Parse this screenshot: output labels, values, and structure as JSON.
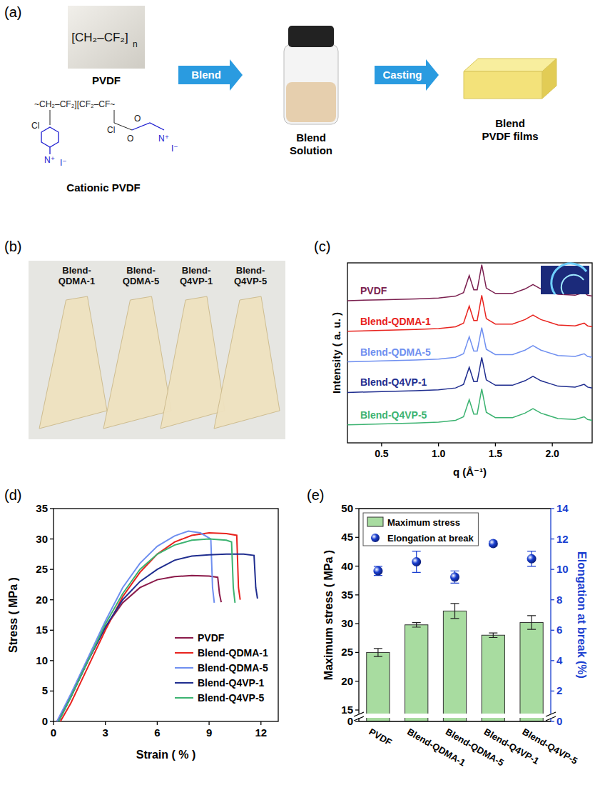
{
  "figure": {
    "panel_labels": [
      "(a)",
      "(b)",
      "(c)",
      "(d)",
      "(e)"
    ],
    "schematic": {
      "pvdf_label": "PVDF",
      "pvdf_formula": "[CH₂–CF₂]",
      "pvdf_subscript": "n",
      "cationic_label": "Cationic PVDF",
      "cationic_backbone": "~CH₂–CF₂][CF₂–CF~",
      "cationic_groups": [
        "Cl",
        "N⁺",
        "I⁻",
        "Cl",
        "O",
        "O",
        "N⁺",
        "I⁻"
      ],
      "steps": [
        "Blend",
        "Casting"
      ],
      "solution_label": "Blend Solution",
      "film_label": "Blend PVDF films"
    },
    "photo": {
      "labels": [
        "Blend-QDMA-1",
        "Blend-QDMA-5",
        "Blend-Q4VP-1",
        "Blend-Q4VP-5"
      ]
    }
  },
  "chart_data": [
    {
      "type": "line",
      "x_label": "q (Å⁻¹)",
      "y_label": "Intensity ( a. u. )",
      "x": [
        0.2,
        0.5,
        0.8,
        1.0,
        1.15,
        1.22,
        1.27,
        1.31,
        1.34,
        1.38,
        1.42,
        1.5,
        1.65,
        1.76,
        1.83,
        1.9,
        2.05,
        2.2,
        2.28,
        2.31,
        2.35
      ],
      "xlim": [
        0.2,
        2.35
      ],
      "xticks": [
        0.5,
        {
          "value": 1,
          "label": "1.0"
        },
        1.5,
        {
          "value": 2,
          "label": "2.0"
        }
      ],
      "ylim": [
        0,
        10
      ],
      "tick_labels": "x",
      "legend": "left",
      "series": [
        {
          "name": "PVDF",
          "color": "#7a1f4f",
          "values": [
            7.9,
            7.95,
            8.0,
            8.05,
            8.15,
            8.35,
            9.3,
            8.5,
            8.5,
            9.9,
            8.6,
            8.3,
            8.3,
            8.55,
            8.8,
            8.55,
            8.25,
            8.2,
            8.35,
            8.2,
            8.15
          ]
        },
        {
          "name": "Blend-QDMA-1",
          "color": "#e8231e",
          "values": [
            6.2,
            6.25,
            6.3,
            6.35,
            6.45,
            6.65,
            7.6,
            6.8,
            6.8,
            8.2,
            6.9,
            6.6,
            6.6,
            6.85,
            7.1,
            6.85,
            6.55,
            6.5,
            6.65,
            6.5,
            6.45
          ]
        },
        {
          "name": "Blend-QDMA-5",
          "color": "#6f8ff0",
          "values": [
            4.5,
            4.55,
            4.6,
            4.65,
            4.75,
            4.95,
            5.9,
            5.1,
            5.1,
            6.4,
            5.2,
            4.9,
            4.9,
            5.15,
            5.4,
            5.15,
            4.85,
            4.8,
            4.95,
            4.8,
            4.75
          ]
        },
        {
          "name": "Blend-Q4VP-1",
          "color": "#1f2d8f",
          "values": [
            2.8,
            2.85,
            2.9,
            2.95,
            3.05,
            3.25,
            4.2,
            3.4,
            3.4,
            4.75,
            3.5,
            3.2,
            3.2,
            3.45,
            3.7,
            3.45,
            3.15,
            3.1,
            3.25,
            3.1,
            3.05
          ]
        },
        {
          "name": "Blend-Q4VP-5",
          "color": "#3cb371",
          "values": [
            1.0,
            1.05,
            1.1,
            1.15,
            1.25,
            1.45,
            2.4,
            1.6,
            1.6,
            3.0,
            1.7,
            1.4,
            1.4,
            1.65,
            1.9,
            1.65,
            1.35,
            1.3,
            1.45,
            1.3,
            1.25
          ]
        }
      ]
    },
    {
      "type": "line",
      "x_label": "Strain ( % )",
      "y_label": "Stress ( MPa )",
      "xlim": [
        0,
        13
      ],
      "xticks": [
        0,
        3,
        6,
        9,
        12
      ],
      "ylim": [
        0,
        35
      ],
      "yticks": [
        0,
        5,
        10,
        15,
        20,
        25,
        30,
        35
      ],
      "legend": "lower right",
      "series": [
        {
          "name": "PVDF",
          "color": "#8b1a4a",
          "x": [
            0.2,
            1,
            2,
            3,
            4,
            5,
            6,
            7,
            8,
            9,
            9.5,
            9.6,
            9.7
          ],
          "values": [
            0,
            4,
            10,
            15.5,
            19.5,
            22,
            23.3,
            23.8,
            24,
            23.9,
            23.7,
            21,
            19.6
          ]
        },
        {
          "name": "Blend-QDMA-1",
          "color": "#e8231e",
          "x": [
            0.4,
            1,
            2,
            3,
            4,
            5,
            6,
            7,
            8,
            9,
            10,
            10.6,
            10.7,
            10.8
          ],
          "values": [
            0,
            3,
            9,
            15,
            20.5,
            24.5,
            27.5,
            29.5,
            30.6,
            31,
            30.9,
            30.6,
            22,
            20
          ]
        },
        {
          "name": "Blend-QDMA-5",
          "color": "#6f8ff0",
          "x": [
            0.2,
            1,
            2,
            3,
            4,
            5,
            6,
            7,
            7.8,
            8.5,
            9.1,
            9.2,
            9.3
          ],
          "values": [
            0,
            4.5,
            10.5,
            16.5,
            22,
            26,
            28.8,
            30.5,
            31.3,
            31,
            30,
            22,
            19.5
          ]
        },
        {
          "name": "Blend-Q4VP-1",
          "color": "#1f2d8f",
          "x": [
            0.3,
            1,
            2,
            3,
            4,
            5,
            6,
            7,
            8,
            9,
            10,
            11,
            11.6,
            11.7,
            11.8
          ],
          "values": [
            0,
            4,
            10,
            15.5,
            20,
            23,
            25,
            26.5,
            27.2,
            27.4,
            27.5,
            27.5,
            27.3,
            22,
            20.2
          ]
        },
        {
          "name": "Blend-Q4VP-5",
          "color": "#3cb371",
          "x": [
            0.3,
            1,
            2,
            3,
            4,
            5,
            6,
            7,
            8,
            9,
            10,
            10.3,
            10.4,
            10.5
          ],
          "values": [
            0,
            4,
            10,
            16,
            21,
            25,
            27.5,
            29,
            29.8,
            30,
            29.8,
            29.5,
            22,
            19.5
          ]
        }
      ]
    },
    {
      "type": "bar",
      "categories": [
        "PVDF",
        "Blend-QDMA-1",
        "Blend-QDMA-5",
        "Blend-Q4VP-1",
        "Blend-Q4VP-5"
      ],
      "y_label": "Maximum stress ( MPa )",
      "y2_label": "Elongation at break (%)",
      "ylim": [
        0,
        50
      ],
      "yticks": [
        0,
        15,
        20,
        25,
        30,
        35,
        40,
        45,
        50
      ],
      "y2lim": [
        0,
        14
      ],
      "y2ticks": [
        0,
        2,
        4,
        6,
        8,
        10,
        12,
        14
      ],
      "legend": "upper left",
      "series": [
        {
          "name": "Maximum stress",
          "type": "bar",
          "color": "#a8dca0",
          "values": [
            25,
            29.8,
            32.2,
            28,
            30.2
          ],
          "errors": [
            0.7,
            0.4,
            1.3,
            0.4,
            1.2
          ]
        },
        {
          "name": "Elongation at break",
          "type": "scatter",
          "axis": "y2",
          "marker": "circle",
          "color": "#1a3fd0",
          "values": [
            9.9,
            10.5,
            9.5,
            11.7,
            10.7
          ],
          "errors": [
            0.3,
            0.7,
            0.4,
            0.15,
            0.5
          ]
        }
      ]
    }
  ]
}
